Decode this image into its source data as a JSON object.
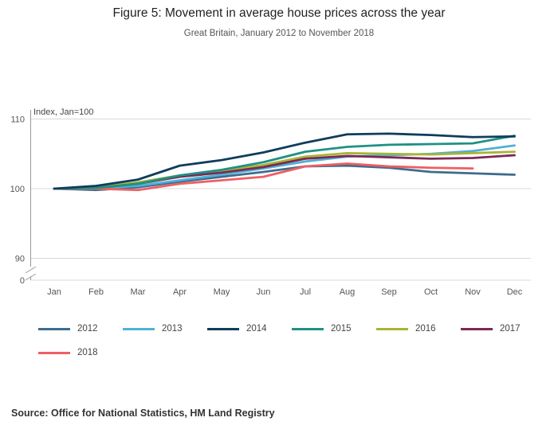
{
  "header": {
    "title": "Figure 5: Movement in average house prices across the year",
    "subtitle": "Great Britain, January 2012 to November 2018"
  },
  "footer": {
    "source": "Source: Office for National Statistics, HM Land Registry"
  },
  "chart_data": {
    "type": "line",
    "axis_note": "Index, Jan=100",
    "categories": [
      "Jan",
      "Feb",
      "Mar",
      "Apr",
      "May",
      "Jun",
      "Jul",
      "Aug",
      "Sep",
      "Oct",
      "Nov",
      "Dec"
    ],
    "yticks": [
      110,
      100,
      90,
      0
    ],
    "ylim": [
      88,
      110
    ],
    "axis_break": true,
    "grid": "horizontal",
    "legend_position": "bottom",
    "colors": {
      "grid": "#d9d9d9",
      "axis": "#999999",
      "tick_text": "#555555",
      "note_text": "#444444"
    },
    "series": [
      {
        "name": "2012",
        "color": "#3d6c8f",
        "values": [
          100,
          99.8,
          100.2,
          101.0,
          101.7,
          102.4,
          103.2,
          103.3,
          103.0,
          102.4,
          102.2,
          102.0
        ]
      },
      {
        "name": "2013",
        "color": "#4fb0d5",
        "values": [
          100,
          100.0,
          100.4,
          101.2,
          102.0,
          102.9,
          103.9,
          104.6,
          104.8,
          105.0,
          105.4,
          106.2
        ]
      },
      {
        "name": "2014",
        "color": "#0f3d5c",
        "values": [
          100,
          100.4,
          101.3,
          103.3,
          104.1,
          105.2,
          106.6,
          107.8,
          107.9,
          107.7,
          107.4,
          107.5
        ]
      },
      {
        "name": "2015",
        "color": "#1f9184",
        "values": [
          100,
          100.1,
          100.7,
          101.9,
          102.7,
          103.8,
          105.3,
          106.0,
          106.3,
          106.4,
          106.5,
          107.6
        ]
      },
      {
        "name": "2016",
        "color": "#a9b434",
        "values": [
          100,
          100.2,
          100.9,
          101.9,
          102.6,
          103.4,
          104.6,
          105.1,
          105.0,
          104.9,
          105.1,
          105.3
        ]
      },
      {
        "name": "2017",
        "color": "#7c2855",
        "values": [
          100,
          100.1,
          100.7,
          101.7,
          102.3,
          103.1,
          104.3,
          104.7,
          104.5,
          104.3,
          104.4,
          104.8
        ]
      },
      {
        "name": "2018",
        "color": "#ef5f62",
        "values": [
          100,
          100.0,
          99.8,
          100.7,
          101.2,
          101.7,
          103.2,
          103.6,
          103.2,
          103.0,
          102.9
        ]
      }
    ]
  }
}
